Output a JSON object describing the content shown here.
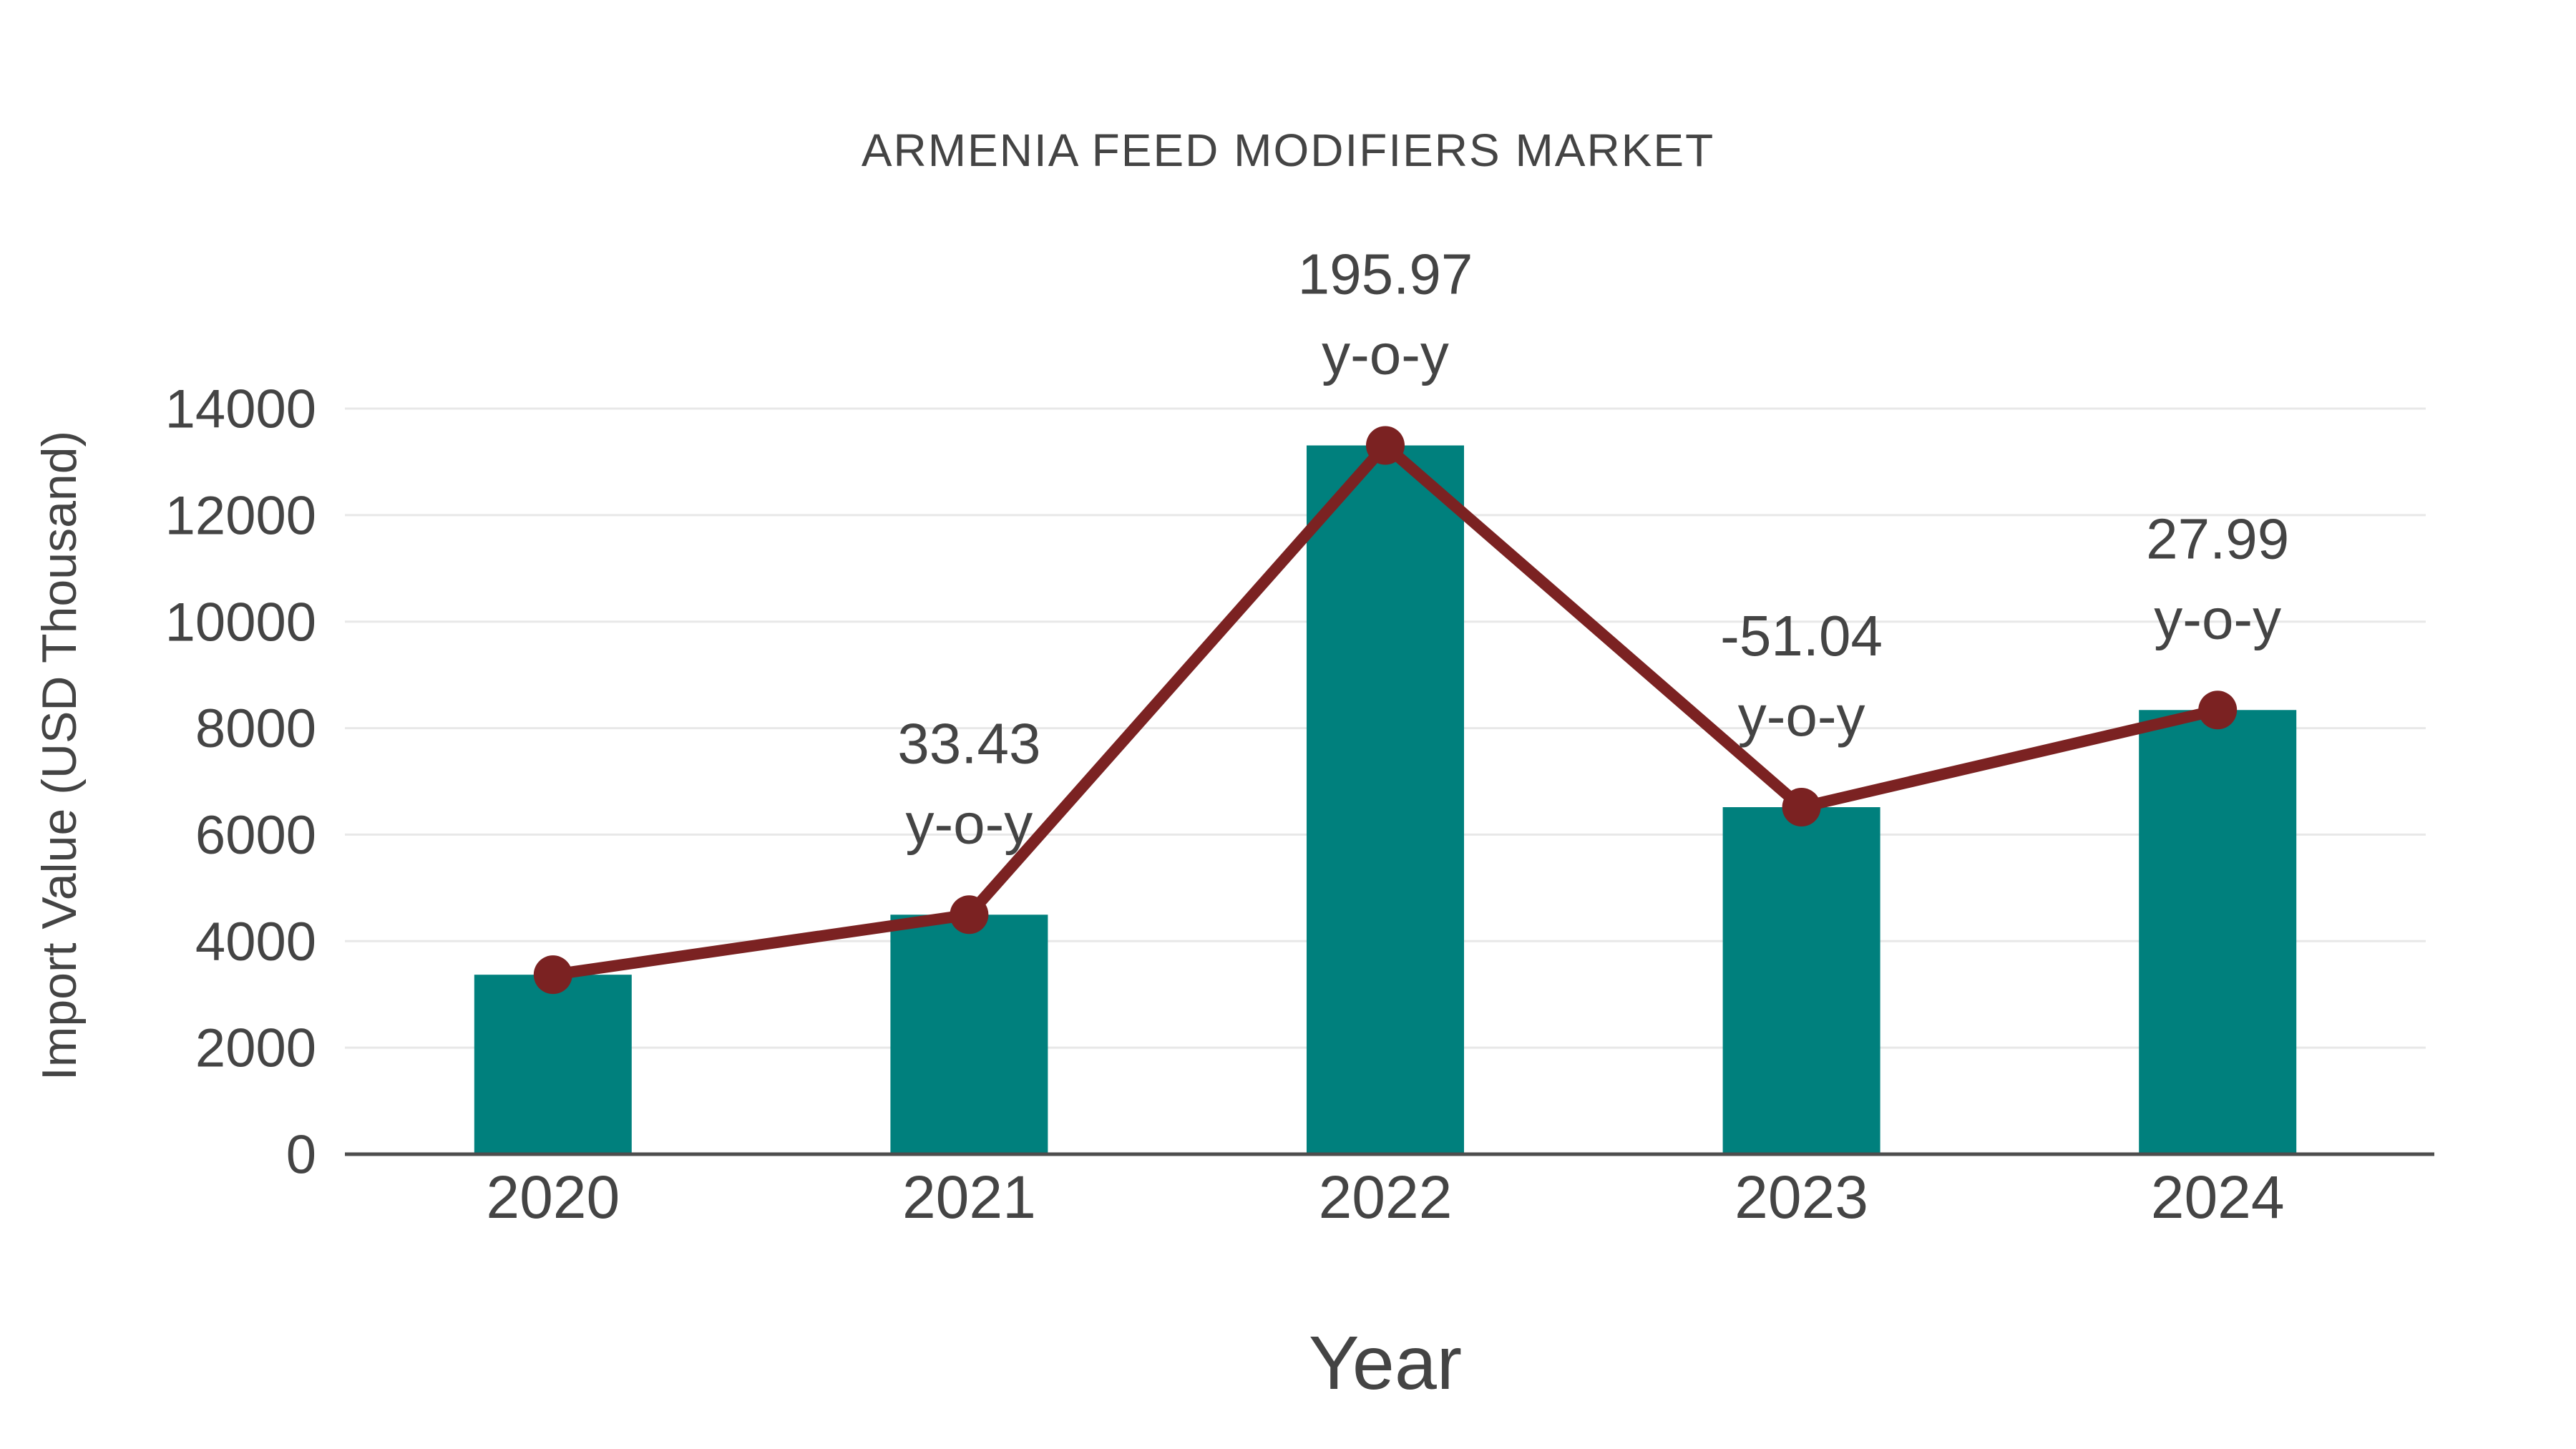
{
  "page": {
    "background": "#ffffff"
  },
  "chart_data": {
    "type": "bar",
    "title": "ARMENIA FEED MODIFIERS MARKET",
    "xlabel": "Year",
    "ylabel": "Import Value (USD Thousand)",
    "categories": [
      "2020",
      "2021",
      "2022",
      "2023",
      "2024"
    ],
    "series": [
      {
        "name": "Import Value (USD Thousand)",
        "type": "bar",
        "color": "#00807d",
        "values": [
          3370,
          4497,
          13308,
          6516,
          8340
        ]
      },
      {
        "name": "Import value trend (markers on bar tops)",
        "type": "line",
        "color": "#7b2222",
        "marker": "circle",
        "values": [
          3370,
          4497,
          13308,
          6516,
          8340
        ]
      }
    ],
    "annotations": [
      {
        "category": "2021",
        "value": "33.43",
        "suffix": "y-o-y"
      },
      {
        "category": "2022",
        "value": "195.97",
        "suffix": "y-o-y"
      },
      {
        "category": "2023",
        "value": "-51.04",
        "suffix": "y-o-y"
      },
      {
        "category": "2024",
        "value": "27.99",
        "suffix": "y-o-y"
      }
    ],
    "ylim": [
      0,
      14000
    ],
    "yticks": [
      0,
      2000,
      4000,
      6000,
      8000,
      10000,
      12000,
      14000
    ],
    "grid": true,
    "legend": "none",
    "colors": {
      "text": "#444444",
      "grid": "#e8e8e8",
      "axis": "#4d4d4d"
    }
  }
}
